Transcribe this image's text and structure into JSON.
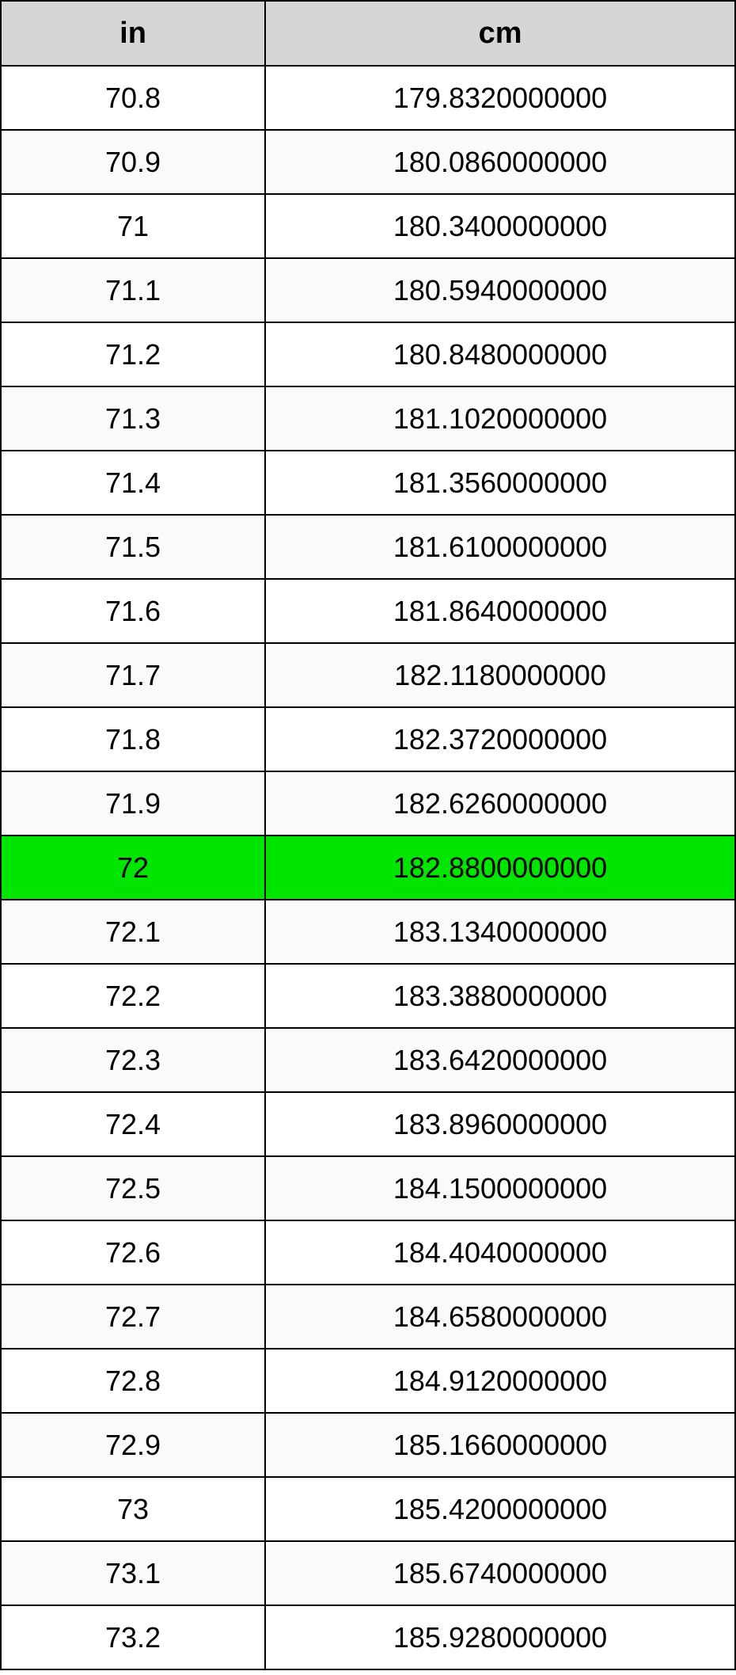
{
  "table": {
    "columns": [
      "in",
      "cm"
    ],
    "header_bg": "#d6d6d6",
    "header_fontsize": 38,
    "cell_fontsize": 36,
    "header_row_height": 82,
    "body_row_height": 81,
    "border_color": "#000000",
    "highlight_bg": "#00e500",
    "alt_row_bg": "#fafafa",
    "row_bg": "#ffffff",
    "text_color": "#000000",
    "col_widths": [
      0.36,
      0.64
    ],
    "rows": [
      {
        "in": "70.8",
        "cm": "179.8320000000",
        "highlight": false
      },
      {
        "in": "70.9",
        "cm": "180.0860000000",
        "highlight": false
      },
      {
        "in": "71",
        "cm": "180.3400000000",
        "highlight": false
      },
      {
        "in": "71.1",
        "cm": "180.5940000000",
        "highlight": false
      },
      {
        "in": "71.2",
        "cm": "180.8480000000",
        "highlight": false
      },
      {
        "in": "71.3",
        "cm": "181.1020000000",
        "highlight": false
      },
      {
        "in": "71.4",
        "cm": "181.3560000000",
        "highlight": false
      },
      {
        "in": "71.5",
        "cm": "181.6100000000",
        "highlight": false
      },
      {
        "in": "71.6",
        "cm": "181.8640000000",
        "highlight": false
      },
      {
        "in": "71.7",
        "cm": "182.1180000000",
        "highlight": false
      },
      {
        "in": "71.8",
        "cm": "182.3720000000",
        "highlight": false
      },
      {
        "in": "71.9",
        "cm": "182.6260000000",
        "highlight": false
      },
      {
        "in": "72",
        "cm": "182.8800000000",
        "highlight": true
      },
      {
        "in": "72.1",
        "cm": "183.1340000000",
        "highlight": false
      },
      {
        "in": "72.2",
        "cm": "183.3880000000",
        "highlight": false
      },
      {
        "in": "72.3",
        "cm": "183.6420000000",
        "highlight": false
      },
      {
        "in": "72.4",
        "cm": "183.8960000000",
        "highlight": false
      },
      {
        "in": "72.5",
        "cm": "184.1500000000",
        "highlight": false
      },
      {
        "in": "72.6",
        "cm": "184.4040000000",
        "highlight": false
      },
      {
        "in": "72.7",
        "cm": "184.6580000000",
        "highlight": false
      },
      {
        "in": "72.8",
        "cm": "184.9120000000",
        "highlight": false
      },
      {
        "in": "72.9",
        "cm": "185.1660000000",
        "highlight": false
      },
      {
        "in": "73",
        "cm": "185.4200000000",
        "highlight": false
      },
      {
        "in": "73.1",
        "cm": "185.6740000000",
        "highlight": false
      },
      {
        "in": "73.2",
        "cm": "185.9280000000",
        "highlight": false
      }
    ]
  }
}
